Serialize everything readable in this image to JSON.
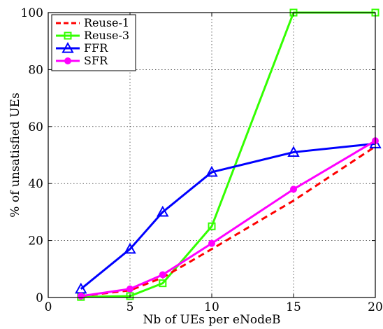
{
  "chart_data": {
    "type": "line",
    "title": "",
    "xlabel": "Nb of UEs per eNodeB",
    "ylabel": "% of unsatisfied UEs",
    "xlim": [
      0,
      20
    ],
    "ylim": [
      0,
      100
    ],
    "xticks": [
      0,
      5,
      10,
      15,
      20
    ],
    "yticks": [
      0,
      20,
      40,
      60,
      80,
      100
    ],
    "grid": true,
    "legend_position": "top-left",
    "series": [
      {
        "name": "Reuse-1",
        "color": "#ff0000",
        "style": "dashed",
        "marker": "none",
        "x": [
          2,
          5,
          7,
          10,
          15,
          20
        ],
        "y": [
          0.5,
          2.5,
          7,
          17,
          34,
          53
        ]
      },
      {
        "name": "Reuse-3",
        "color": "#33ff00",
        "style": "solid",
        "marker": "square",
        "x": [
          2,
          5,
          7,
          10,
          15,
          20
        ],
        "y": [
          0.2,
          0.5,
          5,
          25,
          100,
          100
        ]
      },
      {
        "name": "FFR",
        "color": "#0000ff",
        "style": "solid",
        "marker": "triangle",
        "x": [
          2,
          5,
          7,
          10,
          15,
          20
        ],
        "y": [
          3,
          17,
          30,
          44,
          51,
          54
        ]
      },
      {
        "name": "SFR",
        "color": "#ff00ff",
        "style": "solid",
        "marker": "circle",
        "x": [
          2,
          5,
          7,
          10,
          15,
          20
        ],
        "y": [
          0.5,
          3,
          8,
          19,
          38,
          55
        ]
      }
    ]
  }
}
